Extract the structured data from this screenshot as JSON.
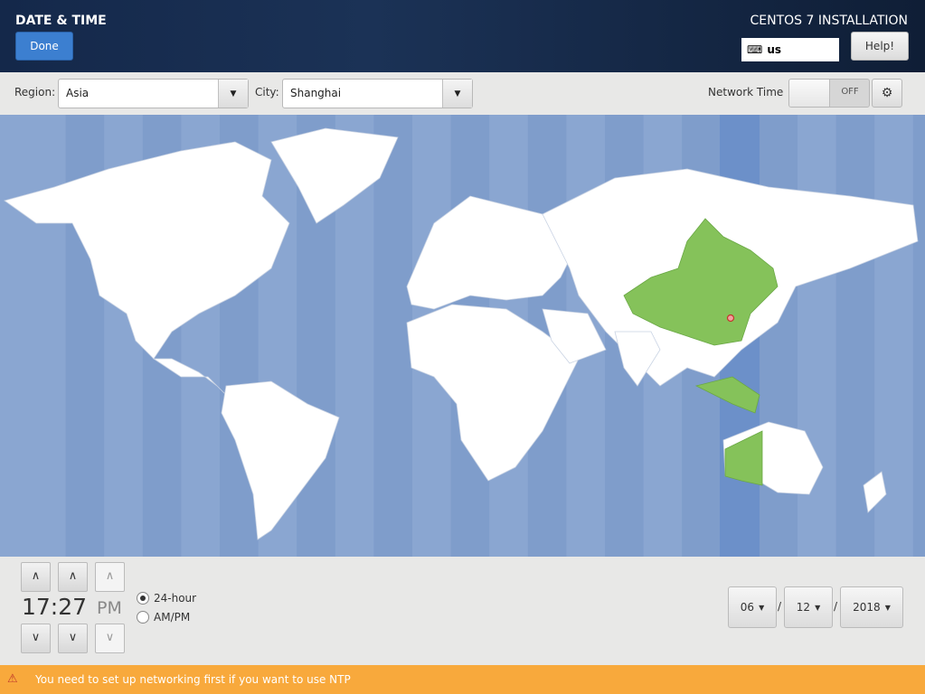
{
  "header": {
    "title": "DATE & TIME",
    "done_label": "Done",
    "installer_title": "CENTOS 7 INSTALLATION",
    "keyboard_layout": "us",
    "help_label": "Help!"
  },
  "toolbar": {
    "region_label": "Region:",
    "region_value": "Asia",
    "city_label": "City:",
    "city_value": "Shanghai",
    "network_time_label": "Network Time",
    "network_time_state": "OFF"
  },
  "map": {
    "selected_city": "Shanghai",
    "land_color": "#ffffff",
    "ocean_color": "#8aa6d1",
    "highlight_color": "#85c25a",
    "selected_zone_color": "#6c90c9"
  },
  "time": {
    "value": "17:27",
    "ampm": "PM",
    "format_24h": "24-hour",
    "format_ampm": "AM/PM",
    "selected_format": "24-hour"
  },
  "date": {
    "month": "06",
    "day": "12",
    "year": "2018",
    "separator": "/"
  },
  "warning": {
    "text": "You need to set up networking first if you want to use NTP",
    "icon": "warning-icon"
  }
}
